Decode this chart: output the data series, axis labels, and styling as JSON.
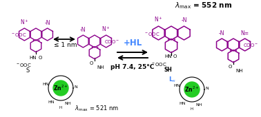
{
  "background_color": "#ffffff",
  "tamra_color": "#8B008B",
  "arrow_color": "#000000",
  "hl_color": "#4488ff",
  "zn_color": "#22cc22",
  "label_521": "λₘₐₓ = 521 nm",
  "label_552_lam": "λ",
  "label_552_rest": "ₘₐₓ = 552 nm",
  "arrow_label_top": "+HL",
  "arrow_label_bot": "pH 7.4, 25°C",
  "le1nm": "≤ 1 nm",
  "figsize": [
    3.78,
    1.7
  ],
  "dpi": 100
}
